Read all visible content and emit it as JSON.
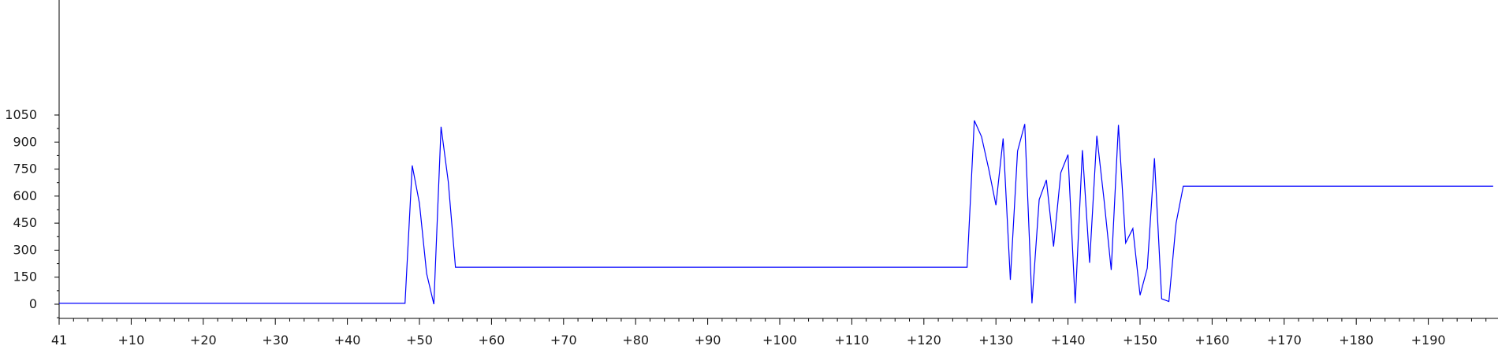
{
  "chart_data": {
    "type": "line",
    "title": "",
    "xlabel": "",
    "ylabel": "",
    "xlim": [
      0,
      199
    ],
    "ylim": [
      -50,
      1080
    ],
    "grid": false,
    "y_ticks": [
      0,
      150,
      300,
      450,
      600,
      750,
      900,
      1050
    ],
    "x_ticks": [
      {
        "x": 0,
        "label": "41"
      },
      {
        "x": 10,
        "label": "+10"
      },
      {
        "x": 20,
        "label": "+20"
      },
      {
        "x": 30,
        "label": "+30"
      },
      {
        "x": 40,
        "label": "+40"
      },
      {
        "x": 50,
        "label": "+50"
      },
      {
        "x": 60,
        "label": "+60"
      },
      {
        "x": 70,
        "label": "+70"
      },
      {
        "x": 80,
        "label": "+80"
      },
      {
        "x": 90,
        "label": "+90"
      },
      {
        "x": 100,
        "label": "+100"
      },
      {
        "x": 110,
        "label": "+110"
      },
      {
        "x": 120,
        "label": "+120"
      },
      {
        "x": 130,
        "label": "+130"
      },
      {
        "x": 140,
        "label": "+140"
      },
      {
        "x": 150,
        "label": "+150"
      },
      {
        "x": 160,
        "label": "+160"
      },
      {
        "x": 170,
        "label": "+170"
      },
      {
        "x": 180,
        "label": "+180"
      },
      {
        "x": 190,
        "label": "+190"
      }
    ],
    "series": [
      {
        "color": "#0000ff",
        "points": [
          [
            0,
            5
          ],
          [
            48,
            5
          ],
          [
            49,
            770
          ],
          [
            50,
            560
          ],
          [
            51,
            170
          ],
          [
            52,
            0
          ],
          [
            53,
            985
          ],
          [
            54,
            680
          ],
          [
            55,
            205
          ],
          [
            126,
            205
          ],
          [
            127,
            1020
          ],
          [
            128,
            930
          ],
          [
            129,
            750
          ],
          [
            130,
            550
          ],
          [
            131,
            920
          ],
          [
            132,
            135
          ],
          [
            133,
            850
          ],
          [
            134,
            1000
          ],
          [
            135,
            5
          ],
          [
            136,
            580
          ],
          [
            137,
            690
          ],
          [
            138,
            320
          ],
          [
            139,
            730
          ],
          [
            140,
            830
          ],
          [
            141,
            5
          ],
          [
            142,
            855
          ],
          [
            143,
            230
          ],
          [
            144,
            935
          ],
          [
            145,
            580
          ],
          [
            146,
            190
          ],
          [
            147,
            995
          ],
          [
            148,
            340
          ],
          [
            149,
            420
          ],
          [
            150,
            50
          ],
          [
            151,
            200
          ],
          [
            152,
            810
          ],
          [
            153,
            30
          ],
          [
            154,
            15
          ],
          [
            155,
            450
          ],
          [
            156,
            655
          ],
          [
            199,
            655
          ]
        ]
      }
    ]
  }
}
